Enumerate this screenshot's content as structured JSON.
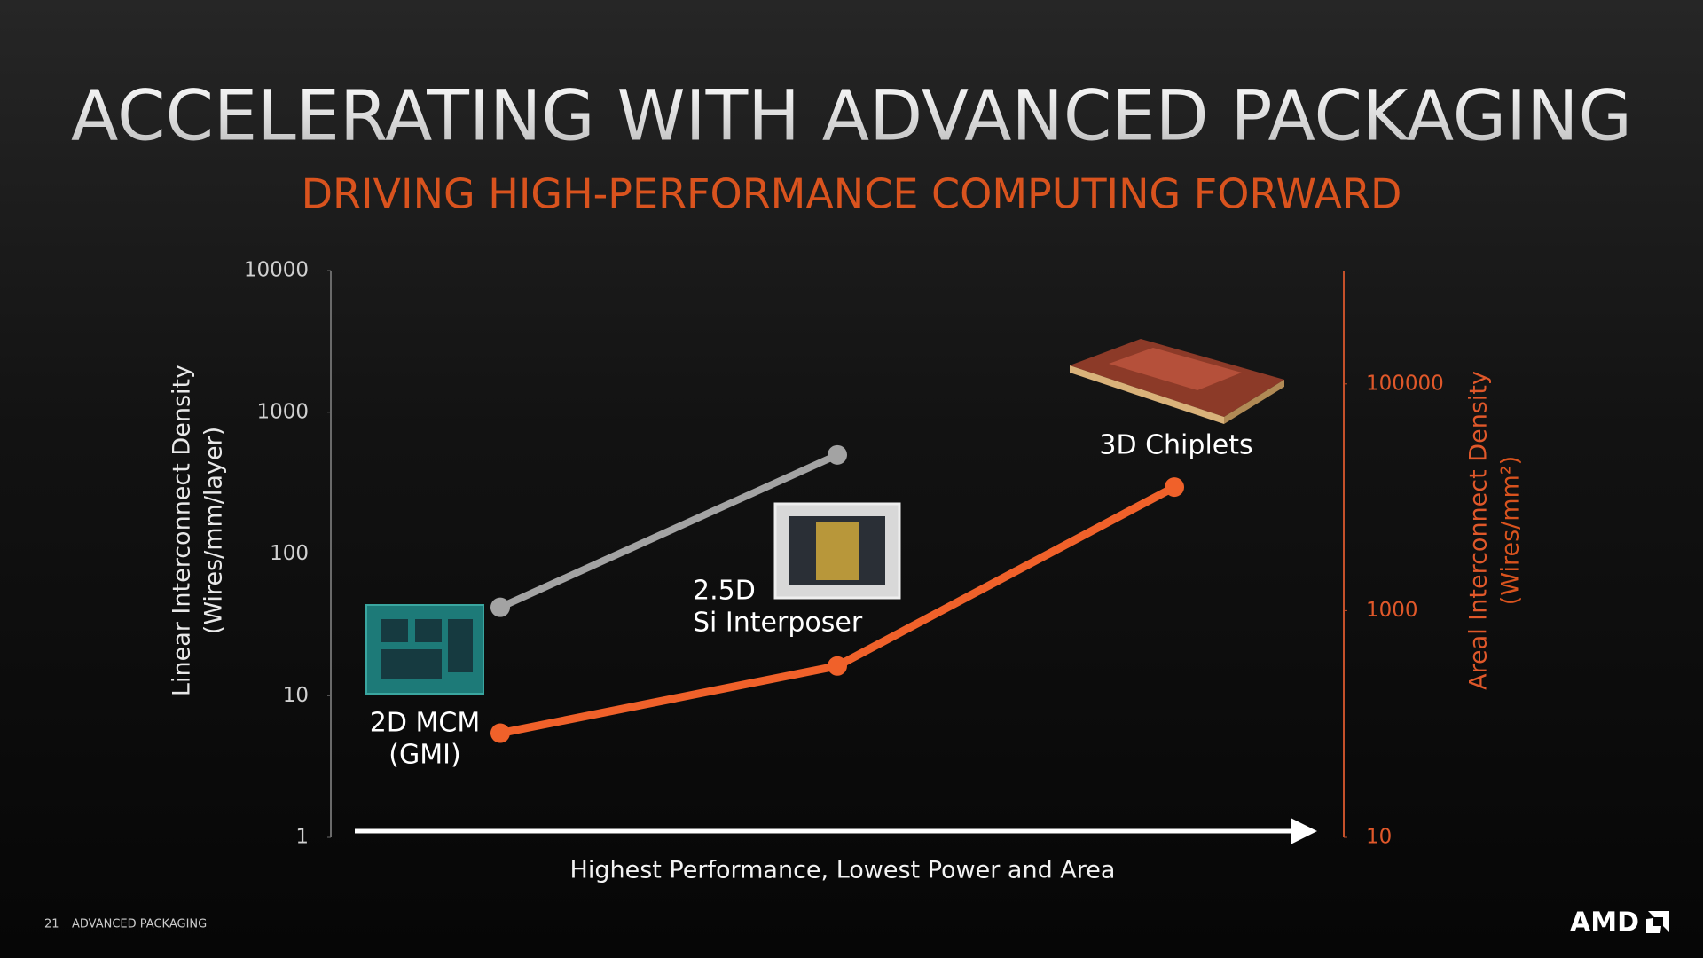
{
  "chart_data": {
    "type": "line",
    "title": "ACCELERATING WITH ADVANCED PACKAGING",
    "subtitle": "DRIVING HIGH-PERFORMANCE COMPUTING FORWARD",
    "categories": [
      [
        "2D MCM",
        "(GMI)"
      ],
      [
        "2.5D",
        "Si Interposer"
      ],
      [
        "3D Chiplets"
      ]
    ],
    "xlabel": "Highest Performance, Lowest Power and Area",
    "ylabel": [
      "Linear Interconnect Density",
      "(Wires/mm/layer)"
    ],
    "y2label": [
      "Areal Interconnect Density",
      "(Wires/mm²)"
    ],
    "yscale": "log",
    "y2scale": "log",
    "ylim": [
      1,
      10000
    ],
    "yticks": [
      1,
      10,
      100,
      1000,
      10000
    ],
    "y2lim": [
      10,
      1000000
    ],
    "y2ticks": [
      10,
      1000,
      100000
    ],
    "series": [
      {
        "color": "#a3a3a3",
        "values": [
          42,
          500,
          null
        ]
      },
      {
        "color": "#f0612a",
        "axis": "y2",
        "values": [
          83,
          325,
          12300
        ]
      }
    ]
  },
  "footer": {
    "page": "21",
    "section": "ADVANCED PACKAGING",
    "logo": "AMD"
  }
}
